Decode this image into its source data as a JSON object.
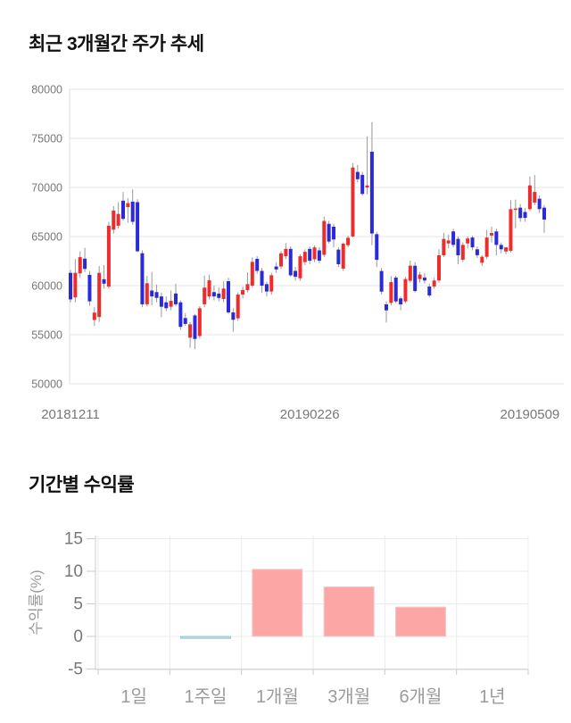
{
  "page": {
    "background": "#ffffff"
  },
  "chart_data": [
    {
      "type": "candlestick",
      "title": "최근 3개월간 주가 추세",
      "ylim": [
        50000,
        80000
      ],
      "y_ticks": [
        80000,
        75000,
        70000,
        65000,
        60000,
        55000,
        50000
      ],
      "x_ticks": [
        {
          "label": "20181211",
          "index": 0
        },
        {
          "label": "20190226",
          "index": 50
        },
        {
          "label": "20190509",
          "index": 96
        }
      ],
      "grid": true,
      "legend": "none",
      "up_color": "#EE2C2C",
      "down_color": "#2A2AD8",
      "wick_color": "#999999",
      "grid_color": "#E6E6E6",
      "axis_color": "#DDDDDD",
      "label_color": "#777777",
      "candles_format": "[open, high, low, close] (KRW)",
      "candles": [
        [
          61300,
          61600,
          58300,
          58600
        ],
        [
          58800,
          62700,
          58300,
          61300
        ],
        [
          61250,
          63500,
          60800,
          62900
        ],
        [
          62750,
          63850,
          61400,
          61700
        ],
        [
          61100,
          61500,
          57950,
          58400
        ],
        [
          56500,
          57800,
          55900,
          57250
        ],
        [
          56800,
          62000,
          56300,
          61300
        ],
        [
          60650,
          62100,
          59700,
          60200
        ],
        [
          59900,
          66500,
          59700,
          66100
        ],
        [
          65700,
          68100,
          65300,
          67650
        ],
        [
          66100,
          68500,
          65800,
          67300
        ],
        [
          68650,
          69550,
          66600,
          66800
        ],
        [
          68000,
          68900,
          66400,
          68400
        ],
        [
          68550,
          69800,
          66200,
          66500
        ],
        [
          68500,
          68800,
          63400,
          63500
        ],
        [
          63300,
          63600,
          57800,
          58100
        ],
        [
          58100,
          61000,
          57900,
          60240
        ],
        [
          59500,
          61400,
          58000,
          58900
        ],
        [
          59340,
          60100,
          58300,
          58750
        ],
        [
          58900,
          59300,
          56800,
          57850
        ],
        [
          58300,
          58900,
          57400,
          57700
        ],
        [
          57850,
          59500,
          57500,
          58450
        ],
        [
          59200,
          60200,
          57900,
          58100
        ],
        [
          58300,
          58500,
          55500,
          55800
        ],
        [
          56700,
          57200,
          55900,
          56100
        ],
        [
          54700,
          56300,
          53670,
          56060
        ],
        [
          56960,
          57100,
          53520,
          54570
        ],
        [
          54870,
          57900,
          54600,
          57700
        ],
        [
          58100,
          61000,
          57800,
          59800
        ],
        [
          58900,
          61130,
          58600,
          60540
        ],
        [
          59340,
          60000,
          58500,
          58900
        ],
        [
          59190,
          59800,
          58400,
          58750
        ],
        [
          58640,
          60450,
          58300,
          59700
        ],
        [
          60450,
          60800,
          57100,
          57270
        ],
        [
          57270,
          57700,
          55300,
          56520
        ],
        [
          56670,
          59300,
          56400,
          59090
        ],
        [
          59090,
          59900,
          58700,
          59550
        ],
        [
          59550,
          61360,
          59300,
          60150
        ],
        [
          60000,
          62880,
          59800,
          62420
        ],
        [
          62730,
          63000,
          61200,
          61500
        ],
        [
          61500,
          61800,
          59250,
          60000
        ],
        [
          60150,
          60400,
          58900,
          59400
        ],
        [
          59400,
          61300,
          59100,
          61050
        ],
        [
          61950,
          62400,
          61300,
          61650
        ],
        [
          61950,
          63500,
          61700,
          63290
        ],
        [
          63000,
          64340,
          62700,
          63740
        ],
        [
          63740,
          64000,
          60900,
          61050
        ],
        [
          61500,
          61900,
          60500,
          60900
        ],
        [
          60750,
          63200,
          60500,
          62990
        ],
        [
          62400,
          63700,
          62100,
          63440
        ],
        [
          63740,
          64000,
          62200,
          62540
        ],
        [
          62690,
          64100,
          62400,
          63890
        ],
        [
          63590,
          63900,
          62300,
          62540
        ],
        [
          63140,
          67040,
          62900,
          66590
        ],
        [
          66290,
          66600,
          64300,
          64490
        ],
        [
          66000,
          66300,
          63900,
          64700
        ],
        [
          63670,
          63900,
          61900,
          62180
        ],
        [
          61730,
          64400,
          61500,
          64270
        ],
        [
          64120,
          65100,
          63900,
          64870
        ],
        [
          65010,
          72480,
          64900,
          72030
        ],
        [
          71580,
          72300,
          70500,
          70840
        ],
        [
          71280,
          71600,
          69200,
          69340
        ],
        [
          70000,
          75200,
          69300,
          70200
        ],
        [
          73640,
          76660,
          64120,
          65310
        ],
        [
          65240,
          65500,
          61880,
          62630
        ],
        [
          61490,
          61800,
          59090,
          59390
        ],
        [
          58090,
          58400,
          56240,
          57480
        ],
        [
          58240,
          60970,
          58000,
          60360
        ],
        [
          60820,
          61000,
          58200,
          58390
        ],
        [
          58700,
          58900,
          57500,
          58090
        ],
        [
          58390,
          60900,
          58200,
          60670
        ],
        [
          60500,
          62545,
          60300,
          62030
        ],
        [
          62030,
          62400,
          59300,
          59450
        ],
        [
          60670,
          61400,
          60300,
          61120
        ],
        [
          60820,
          61300,
          60200,
          60520
        ],
        [
          59910,
          60200,
          58800,
          59000
        ],
        [
          59910,
          60800,
          59700,
          60520
        ],
        [
          60520,
          63700,
          60300,
          63090
        ],
        [
          63090,
          65360,
          62900,
          64760
        ],
        [
          64300,
          65200,
          63800,
          64600
        ],
        [
          65520,
          65800,
          63900,
          64150
        ],
        [
          64760,
          65000,
          62180,
          63090
        ],
        [
          62640,
          64400,
          62400,
          64150
        ],
        [
          64300,
          65000,
          63800,
          64800
        ],
        [
          64900,
          65100,
          63600,
          63900
        ],
        [
          63700,
          64000,
          62800,
          63100
        ],
        [
          62330,
          63100,
          62000,
          62940
        ],
        [
          62940,
          65670,
          62700,
          64900
        ],
        [
          65100,
          66000,
          64400,
          65360
        ],
        [
          65520,
          65800,
          63090,
          64150
        ],
        [
          64150,
          64400,
          63300,
          63700
        ],
        [
          63480,
          63900,
          63200,
          63900
        ],
        [
          63550,
          68700,
          63400,
          67790
        ],
        [
          67800,
          68760,
          65850,
          67850
        ],
        [
          67940,
          68300,
          66500,
          66880
        ],
        [
          67500,
          67900,
          66500,
          66900
        ],
        [
          67790,
          71120,
          67600,
          70210
        ],
        [
          68460,
          71270,
          68200,
          69540
        ],
        [
          68850,
          69200,
          67400,
          67790
        ],
        [
          67940,
          68200,
          65370,
          66730
        ]
      ]
    },
    {
      "type": "bar",
      "title": "기간별 수익률",
      "ylabel": "수익률(%)",
      "categories": [
        "1일",
        "1주일",
        "1개월",
        "3개월",
        "6개월",
        "1년"
      ],
      "values": [
        0,
        -0.3,
        10.3,
        7.6,
        4.5,
        0
      ],
      "ylim": [
        -5,
        15
      ],
      "y_ticks": [
        15,
        10,
        5,
        0,
        -5
      ],
      "grid": true,
      "legend": "none",
      "positive_color": "#FCA6A6",
      "positive_border": "#EFC9C9",
      "negative_color": "#BCD9E4",
      "negative_border": "#9CC6D5",
      "grid_color": "#EBEBEB",
      "axis_color": "#CCCCCC",
      "tick_label_color": "#777777",
      "category_label_color": "#9B9B9B",
      "ylabel_color": "#9B9B9B"
    }
  ]
}
